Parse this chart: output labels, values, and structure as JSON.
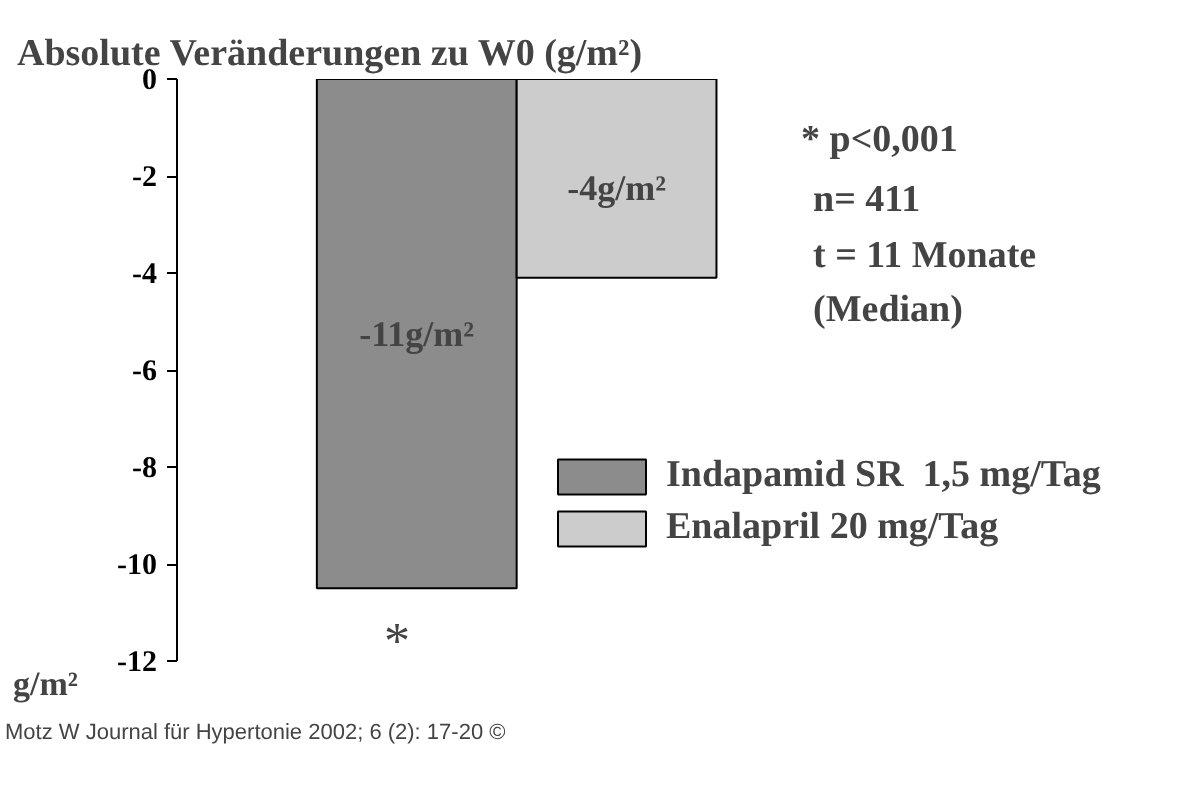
{
  "chart_data": {
    "type": "bar",
    "title": "Absolute Veränderungen zu W0 (g/m²)",
    "ylabel": "g/m²",
    "categories": [
      null
    ],
    "series": [
      {
        "name": "Indapamid SR  1,5 mg/Tag",
        "color": "#8c8c8c",
        "values": [
          -10.5
        ],
        "value_labels": [
          "-11g/m²"
        ]
      },
      {
        "name": "Enalapril 20 mg/Tag",
        "color": "#cccccc",
        "values": [
          -4.1
        ],
        "value_labels": [
          "-4g/m²"
        ]
      }
    ],
    "ylim": [
      -12,
      0
    ],
    "yticks": [
      0,
      -2,
      -4,
      -6,
      -8,
      -10,
      -12
    ],
    "grid": false,
    "legend": "right",
    "annotations": [
      "*",
      "* p<0,001",
      "n= 411",
      "t = 11 Monate",
      "(Median)",
      "Motz W Journal für Hypertonie 2002; 6 (2): 17-20 ©"
    ]
  }
}
